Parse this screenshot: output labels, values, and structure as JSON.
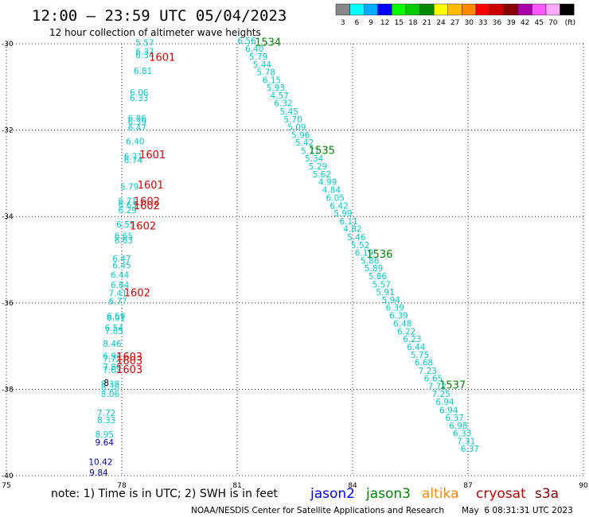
{
  "header": {
    "title": "12:00 – 23:59 UTC 05/04/2023",
    "subtitle": "12 hour collection of altimeter wave heights"
  },
  "legend": {
    "colors": [
      "#888888",
      "#00ffff",
      "#00aaff",
      "#0000ff",
      "#00ff00",
      "#00cc00",
      "#008800",
      "#ffff00",
      "#ffbb00",
      "#ff8800",
      "#ff0000",
      "#cc0000",
      "#880000",
      "#aa00aa",
      "#ff55ff",
      "#ffaaff",
      "#000000"
    ],
    "labels": [
      "3",
      "6",
      "9",
      "12",
      "15",
      "18",
      "21",
      "24",
      "27",
      "30",
      "33",
      "36",
      "39",
      "42",
      "45",
      "70",
      "(ft)"
    ]
  },
  "footer": {
    "note": "note: 1) Time is in UTC; 2) SWH is in feet",
    "satellites": [
      {
        "name": "jason2",
        "color": "#0000ff"
      },
      {
        "name": "jason3",
        "color": "#008800"
      },
      {
        "name": "altika",
        "color": "#ff8800"
      },
      {
        "name": "cryosat",
        "color": "#cc0000"
      },
      {
        "name": "s3a",
        "color": "#880000"
      }
    ],
    "credit": "NOAA/NESDIS Center for Satellite Applications and Research",
    "timestamp": "May  6 08:31:31 UTC 2023"
  },
  "chart_data": {
    "type": "scatter",
    "title": "12:00 – 23:59 UTC 05/04/2023",
    "xlim": [
      75,
      90
    ],
    "ylim": [
      -40,
      -30
    ],
    "x_ticks": [
      75,
      78,
      81,
      84,
      87,
      90
    ],
    "y_ticks": [
      -30,
      -32,
      -34,
      -36,
      -38,
      -40
    ],
    "grid": "dotted",
    "colors": {
      "cyan": "#00cccc",
      "blue": "#0000cc",
      "red": "#dd0000",
      "green": "#008800",
      "black": "#000000"
    },
    "points": [
      {
        "x": 78.6,
        "y": -30.05,
        "t": "5.57",
        "c": "cyan"
      },
      {
        "x": 78.6,
        "y": -30.25,
        "t": "6.37",
        "c": "cyan"
      },
      {
        "x": 78.6,
        "y": -30.33,
        "t": "6.34",
        "c": "cyan"
      },
      {
        "x": 78.55,
        "y": -30.7,
        "t": "6.81",
        "c": "cyan"
      },
      {
        "x": 78.45,
        "y": -31.2,
        "t": "6.06",
        "c": "cyan"
      },
      {
        "x": 78.45,
        "y": -31.33,
        "t": "6.33",
        "c": "cyan"
      },
      {
        "x": 78.4,
        "y": -31.8,
        "t": "6.86",
        "c": "cyan"
      },
      {
        "x": 78.4,
        "y": -31.88,
        "t": "6.39",
        "c": "cyan"
      },
      {
        "x": 78.4,
        "y": -32.02,
        "t": "6.47",
        "c": "cyan"
      },
      {
        "x": 78.35,
        "y": -32.33,
        "t": "6.40",
        "c": "cyan"
      },
      {
        "x": 78.3,
        "y": -32.68,
        "t": "6.71",
        "c": "cyan"
      },
      {
        "x": 78.3,
        "y": -32.76,
        "t": "6.74",
        "c": "cyan"
      },
      {
        "x": 78.2,
        "y": -33.38,
        "t": "5.79",
        "c": "cyan"
      },
      {
        "x": 78.15,
        "y": -33.71,
        "t": "6.71",
        "c": "cyan"
      },
      {
        "x": 78.15,
        "y": -33.8,
        "t": "6.63",
        "c": "cyan"
      },
      {
        "x": 78.15,
        "y": -33.92,
        "t": "6.29",
        "c": "cyan"
      },
      {
        "x": 78.1,
        "y": -34.25,
        "t": "6.55",
        "c": "cyan"
      },
      {
        "x": 78.05,
        "y": -34.52,
        "t": "6.65",
        "c": "cyan"
      },
      {
        "x": 78.05,
        "y": -34.62,
        "t": "6.63",
        "c": "cyan"
      },
      {
        "x": 78.0,
        "y": -35.05,
        "t": "6.47",
        "c": "cyan"
      },
      {
        "x": 78.0,
        "y": -35.2,
        "t": "6.45",
        "c": "cyan"
      },
      {
        "x": 77.95,
        "y": -35.42,
        "t": "6.44",
        "c": "cyan"
      },
      {
        "x": 77.95,
        "y": -35.65,
        "t": "6.84",
        "c": "cyan"
      },
      {
        "x": 77.9,
        "y": -35.85,
        "t": "7.41",
        "c": "cyan"
      },
      {
        "x": 77.9,
        "y": -36.03,
        "t": "6.77",
        "c": "cyan"
      },
      {
        "x": 77.85,
        "y": -36.38,
        "t": "6.59",
        "c": "cyan"
      },
      {
        "x": 77.85,
        "y": -36.42,
        "t": "6.91",
        "c": "cyan"
      },
      {
        "x": 77.8,
        "y": -36.65,
        "t": "6.54",
        "c": "cyan"
      },
      {
        "x": 77.8,
        "y": -36.72,
        "t": "7.05",
        "c": "cyan"
      },
      {
        "x": 77.75,
        "y": -37.02,
        "t": "8.46",
        "c": "cyan"
      },
      {
        "x": 77.75,
        "y": -37.3,
        "t": "6.94",
        "c": "cyan"
      },
      {
        "x": 77.75,
        "y": -37.37,
        "t": "7.72",
        "c": "cyan"
      },
      {
        "x": 77.75,
        "y": -37.55,
        "t": "7.86",
        "c": "cyan"
      },
      {
        "x": 77.75,
        "y": -37.62,
        "t": "7.62",
        "c": "cyan"
      },
      {
        "x": 77.7,
        "y": -37.95,
        "t": "8.38",
        "c": "cyan"
      },
      {
        "x": 77.7,
        "y": -38.02,
        "t": "8.38",
        "c": "cyan"
      },
      {
        "x": 77.7,
        "y": -38.18,
        "t": "8.06",
        "c": "cyan"
      },
      {
        "x": 77.6,
        "y": -38.62,
        "t": "7.72",
        "c": "cyan"
      },
      {
        "x": 77.6,
        "y": -38.78,
        "t": "8.33",
        "c": "cyan"
      },
      {
        "x": 77.55,
        "y": -39.12,
        "t": "8.95",
        "c": "cyan"
      },
      {
        "x": 77.55,
        "y": -39.3,
        "t": "9.64",
        "c": "blue"
      },
      {
        "x": 77.45,
        "y": -39.75,
        "t": "10.42",
        "c": "blue"
      },
      {
        "x": 77.4,
        "y": -40.0,
        "t": "9.84",
        "c": "blue"
      },
      {
        "x": 77.6,
        "y": -37.92,
        "t": "8",
        "c": "black"
      },
      {
        "x": 81.25,
        "y": -30.0,
        "t": "6.56",
        "c": "cyan"
      },
      {
        "x": 81.45,
        "y": -30.18,
        "t": "6.40",
        "c": "cyan"
      },
      {
        "x": 81.55,
        "y": -30.37,
        "t": "5.79",
        "c": "cyan"
      },
      {
        "x": 81.65,
        "y": -30.55,
        "t": "5.44",
        "c": "cyan"
      },
      {
        "x": 81.75,
        "y": -30.73,
        "t": "5.78",
        "c": "cyan"
      },
      {
        "x": 81.9,
        "y": -30.91,
        "t": "6.15",
        "c": "cyan"
      },
      {
        "x": 82.0,
        "y": -31.09,
        "t": "5.93",
        "c": "cyan"
      },
      {
        "x": 82.1,
        "y": -31.27,
        "t": "4.57",
        "c": "cyan"
      },
      {
        "x": 82.2,
        "y": -31.45,
        "t": "6.32",
        "c": "cyan"
      },
      {
        "x": 82.35,
        "y": -31.64,
        "t": "5.45",
        "c": "cyan"
      },
      {
        "x": 82.45,
        "y": -31.82,
        "t": "5.70",
        "c": "cyan"
      },
      {
        "x": 82.55,
        "y": -32.0,
        "t": "5.09",
        "c": "cyan"
      },
      {
        "x": 82.65,
        "y": -32.18,
        "t": "5.96",
        "c": "cyan"
      },
      {
        "x": 82.75,
        "y": -32.36,
        "t": "5.42",
        "c": "cyan"
      },
      {
        "x": 82.9,
        "y": -32.55,
        "t": "5.71",
        "c": "cyan"
      },
      {
        "x": 83.0,
        "y": -32.73,
        "t": "5.34",
        "c": "cyan"
      },
      {
        "x": 83.1,
        "y": -32.91,
        "t": "5.29",
        "c": "cyan"
      },
      {
        "x": 83.2,
        "y": -33.09,
        "t": "5.62",
        "c": "cyan"
      },
      {
        "x": 83.35,
        "y": -33.27,
        "t": "4.99",
        "c": "cyan"
      },
      {
        "x": 83.45,
        "y": -33.45,
        "t": "4.84",
        "c": "cyan"
      },
      {
        "x": 83.55,
        "y": -33.64,
        "t": "6.05",
        "c": "cyan"
      },
      {
        "x": 83.65,
        "y": -33.82,
        "t": "6.42",
        "c": "cyan"
      },
      {
        "x": 83.75,
        "y": -34.0,
        "t": "5.99",
        "c": "cyan"
      },
      {
        "x": 83.9,
        "y": -34.18,
        "t": "6.11",
        "c": "cyan"
      },
      {
        "x": 84.0,
        "y": -34.36,
        "t": "4.82",
        "c": "cyan"
      },
      {
        "x": 84.1,
        "y": -34.55,
        "t": "5.46",
        "c": "cyan"
      },
      {
        "x": 84.2,
        "y": -34.73,
        "t": "5.52",
        "c": "cyan"
      },
      {
        "x": 84.3,
        "y": -34.91,
        "t": "6.19",
        "c": "cyan"
      },
      {
        "x": 84.45,
        "y": -35.09,
        "t": "5.86",
        "c": "cyan"
      },
      {
        "x": 84.55,
        "y": -35.27,
        "t": "5.89",
        "c": "cyan"
      },
      {
        "x": 84.65,
        "y": -35.45,
        "t": "5.86",
        "c": "cyan"
      },
      {
        "x": 84.75,
        "y": -35.64,
        "t": "5.57",
        "c": "cyan"
      },
      {
        "x": 84.85,
        "y": -35.82,
        "t": "5.91",
        "c": "cyan"
      },
      {
        "x": 85.0,
        "y": -36.0,
        "t": "5.94",
        "c": "cyan"
      },
      {
        "x": 85.1,
        "y": -36.18,
        "t": "6.39",
        "c": "cyan"
      },
      {
        "x": 85.2,
        "y": -36.36,
        "t": "6.39",
        "c": "cyan"
      },
      {
        "x": 85.3,
        "y": -36.55,
        "t": "6.48",
        "c": "cyan"
      },
      {
        "x": 85.4,
        "y": -36.73,
        "t": "6.22",
        "c": "cyan"
      },
      {
        "x": 85.55,
        "y": -36.91,
        "t": "6.23",
        "c": "cyan"
      },
      {
        "x": 85.65,
        "y": -37.09,
        "t": "6.44",
        "c": "cyan"
      },
      {
        "x": 85.75,
        "y": -37.27,
        "t": "5.75",
        "c": "cyan"
      },
      {
        "x": 85.85,
        "y": -37.45,
        "t": "6.68",
        "c": "cyan"
      },
      {
        "x": 85.95,
        "y": -37.64,
        "t": "7.23",
        "c": "cyan"
      },
      {
        "x": 86.1,
        "y": -37.82,
        "t": "6.65",
        "c": "cyan"
      },
      {
        "x": 86.2,
        "y": -38.0,
        "t": "7.72",
        "c": "cyan"
      },
      {
        "x": 86.3,
        "y": -38.18,
        "t": "7.25",
        "c": "cyan"
      },
      {
        "x": 86.4,
        "y": -38.36,
        "t": "6.94",
        "c": "cyan"
      },
      {
        "x": 86.5,
        "y": -38.55,
        "t": "6.94",
        "c": "cyan"
      },
      {
        "x": 86.65,
        "y": -38.73,
        "t": "6.37",
        "c": "cyan"
      },
      {
        "x": 86.75,
        "y": -38.91,
        "t": "6.98",
        "c": "cyan"
      },
      {
        "x": 86.85,
        "y": -39.09,
        "t": "6.33",
        "c": "cyan"
      },
      {
        "x": 86.95,
        "y": -39.27,
        "t": "7.31",
        "c": "cyan"
      },
      {
        "x": 87.05,
        "y": -39.45,
        "t": "6.37",
        "c": "cyan"
      }
    ],
    "time_labels": [
      {
        "x": 79.05,
        "y": -30.4,
        "t": "1601",
        "c": "red"
      },
      {
        "x": 78.8,
        "y": -32.65,
        "t": "1601",
        "c": "red"
      },
      {
        "x": 78.75,
        "y": -33.35,
        "t": "1601",
        "c": "red"
      },
      {
        "x": 78.65,
        "y": -33.73,
        "t": "1602",
        "c": "red"
      },
      {
        "x": 78.65,
        "y": -33.83,
        "t": "1602",
        "c": "red"
      },
      {
        "x": 78.55,
        "y": -34.3,
        "t": "1602",
        "c": "red"
      },
      {
        "x": 78.4,
        "y": -35.85,
        "t": "1602",
        "c": "red"
      },
      {
        "x": 78.2,
        "y": -37.33,
        "t": "1603",
        "c": "red"
      },
      {
        "x": 78.2,
        "y": -37.42,
        "t": "1603",
        "c": "red"
      },
      {
        "x": 78.2,
        "y": -37.62,
        "t": "1603",
        "c": "red"
      },
      {
        "x": 81.8,
        "y": -30.05,
        "t": "1534",
        "c": "green"
      },
      {
        "x": 83.2,
        "y": -32.55,
        "t": "1535",
        "c": "green"
      },
      {
        "x": 84.7,
        "y": -34.95,
        "t": "1536",
        "c": "green"
      },
      {
        "x": 86.6,
        "y": -37.98,
        "t": "1537",
        "c": "green"
      }
    ]
  }
}
